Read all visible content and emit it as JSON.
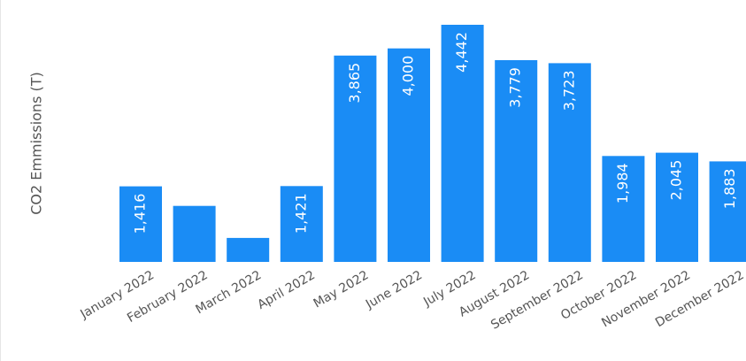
{
  "chart_data": {
    "type": "bar",
    "ylabel": "CO2 Emmissions (T)",
    "bar_color": "#1a8cf5",
    "label_color": "#ffffff",
    "categories": [
      "January 2022",
      "February 2022",
      "March 2022",
      "April 2022",
      "May 2022",
      "June 2022",
      "July 2022",
      "August 2022",
      "September 2022",
      "October 2022",
      "November 2022",
      "December 2022"
    ],
    "values": [
      1416,
      1050,
      450,
      1421,
      3865,
      4000,
      4442,
      3779,
      3723,
      1984,
      2045,
      1883
    ],
    "data_labels": [
      "1,416",
      "",
      "",
      "1,421",
      "3,865",
      "4,000",
      "4,442",
      "3,779",
      "3,723",
      "1,984",
      "2,045",
      "1,883"
    ],
    "ylim": [
      0,
      4442
    ]
  }
}
